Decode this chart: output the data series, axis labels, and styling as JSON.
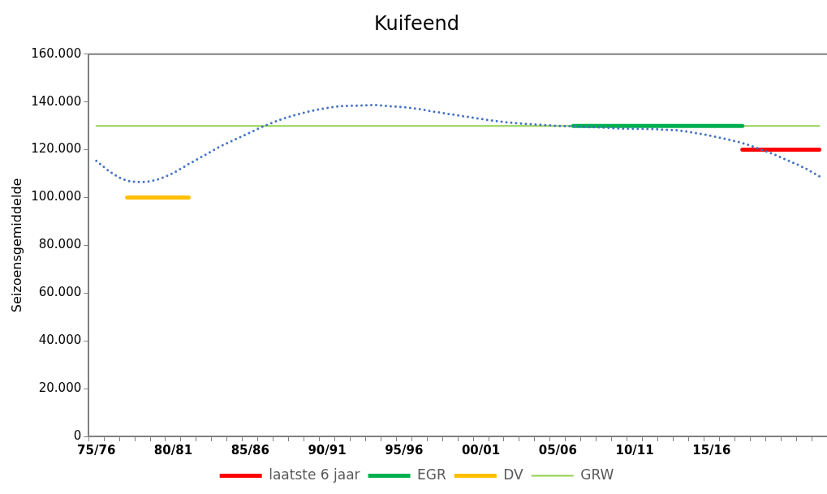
{
  "chart_data": {
    "type": "line",
    "title": "Kuifeend",
    "ylabel": "Seizoensgemiddelde",
    "categories": [
      "75/76",
      null,
      null,
      null,
      null,
      "80/81",
      null,
      null,
      null,
      null,
      "85/86",
      null,
      null,
      null,
      null,
      "90/91",
      null,
      null,
      null,
      null,
      "95/96",
      null,
      null,
      null,
      null,
      "00/01",
      null,
      null,
      null,
      null,
      "05/06",
      null,
      null,
      null,
      null,
      "10/11",
      null,
      null,
      null,
      null,
      "15/16",
      null,
      null,
      null,
      null,
      null,
      null,
      null
    ],
    "series": [
      {
        "color": "#4472c4",
        "line_style": "dotted",
        "values": [
          115400,
          110300,
          107100,
          106500,
          107600,
          110300,
          114000,
          117600,
          121200,
          124200,
          127200,
          130200,
          132700,
          134700,
          136300,
          137500,
          138300,
          138500,
          138700,
          138300,
          137800,
          137000,
          135900,
          134900,
          133900,
          132900,
          132000,
          131300,
          130800,
          130400,
          130000,
          129800,
          129500,
          129300,
          128900,
          128800,
          128700,
          128400,
          128000,
          127000,
          125800,
          124400,
          122800,
          120600,
          118200,
          115400,
          112500,
          108900
        ]
      },
      {
        "name": "laatste 6 jaar",
        "color": "#ff0000",
        "line_style": "solid",
        "values": [
          null,
          null,
          null,
          null,
          null,
          null,
          null,
          null,
          null,
          null,
          null,
          null,
          null,
          null,
          null,
          null,
          null,
          null,
          null,
          null,
          null,
          null,
          null,
          null,
          null,
          null,
          null,
          null,
          null,
          null,
          null,
          null,
          null,
          null,
          null,
          null,
          null,
          null,
          null,
          null,
          null,
          null,
          120000,
          120000,
          120000,
          120000,
          120000,
          120000
        ]
      },
      {
        "name": "EGR",
        "color": "#00b050",
        "line_style": "solid",
        "values": [
          null,
          null,
          null,
          null,
          null,
          null,
          null,
          null,
          null,
          null,
          null,
          null,
          null,
          null,
          null,
          null,
          null,
          null,
          null,
          null,
          null,
          null,
          null,
          null,
          null,
          null,
          null,
          null,
          null,
          null,
          null,
          130000,
          130000,
          130000,
          130000,
          130000,
          130000,
          130000,
          130000,
          130000,
          130000,
          130000,
          130000,
          null,
          null,
          null,
          null,
          null
        ]
      },
      {
        "name": "DV",
        "color": "#ffc000",
        "line_style": "solid",
        "values": [
          null,
          null,
          100000,
          100000,
          100000,
          100000,
          100000,
          null,
          null,
          null,
          null,
          null,
          null,
          null,
          null,
          null,
          null,
          null,
          null,
          null,
          null,
          null,
          null,
          null,
          null,
          null,
          null,
          null,
          null,
          null,
          null,
          null,
          null,
          null,
          null,
          null,
          null,
          null,
          null,
          null,
          null,
          null,
          null,
          null,
          null,
          null,
          null,
          null
        ]
      },
      {
        "name": "GRW",
        "color": "#92d050",
        "line_style": "solid",
        "values": [
          130000,
          130000,
          130000,
          130000,
          130000,
          130000,
          130000,
          130000,
          130000,
          130000,
          130000,
          130000,
          130000,
          130000,
          130000,
          130000,
          130000,
          130000,
          130000,
          130000,
          130000,
          130000,
          130000,
          130000,
          130000,
          130000,
          130000,
          130000,
          130000,
          130000,
          130000,
          130000,
          130000,
          130000,
          130000,
          130000,
          130000,
          130000,
          130000,
          130000,
          130000,
          130000,
          130000,
          130000,
          130000,
          130000,
          130000,
          130000
        ]
      }
    ],
    "ylim": [
      0,
      160000
    ],
    "yticks": [
      0,
      {
        "value": 20000,
        "label": "20.000"
      },
      {
        "value": 40000,
        "label": "40.000"
      },
      {
        "value": 60000,
        "label": "60.000"
      },
      {
        "value": 80000,
        "label": "80.000"
      },
      {
        "value": 100000,
        "label": "100.000"
      },
      {
        "value": 120000,
        "label": "120.000"
      },
      {
        "value": 140000,
        "label": "140.000"
      },
      {
        "value": 160000,
        "label": "160.000"
      }
    ],
    "grid": false,
    "legend": "bottom",
    "marker": "none"
  }
}
